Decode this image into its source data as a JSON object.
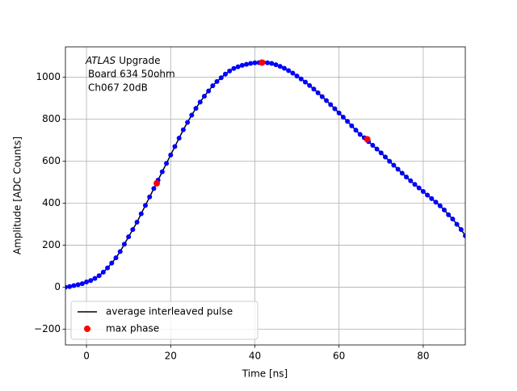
{
  "chart_data": {
    "type": "line",
    "annotation": {
      "italic": "ATLAS",
      "lines": [
        "Upgrade",
        "Board 634 50ohm",
        "Ch067 20dB"
      ]
    },
    "xlabel": "Time [ns]",
    "ylabel": "Amplitude [ADC Counts]",
    "xlim": [
      -5,
      90
    ],
    "xticks": [
      0,
      20,
      40,
      60,
      80
    ],
    "ylim": [
      -275,
      1145
    ],
    "yticks": [
      {
        "value": -200,
        "label": "−200"
      },
      0,
      200,
      400,
      600,
      800,
      1000
    ],
    "grid": true,
    "legend": "lower left",
    "series": [
      {
        "name": "average interleaved pulse",
        "color": "#000000",
        "marker_color": "#0000ff",
        "x": [
          -5,
          -4,
          -3,
          -2,
          -1,
          0,
          1,
          2,
          3,
          4,
          5,
          6,
          7,
          8,
          9,
          10,
          11,
          12,
          13,
          14,
          15,
          16,
          17,
          18,
          19,
          20,
          21,
          22,
          23,
          24,
          25,
          26,
          27,
          28,
          29,
          30,
          31,
          32,
          33,
          34,
          35,
          36,
          37,
          38,
          39,
          40,
          41,
          42,
          43,
          44,
          45,
          46,
          47,
          48,
          49,
          50,
          51,
          52,
          53,
          54,
          55,
          56,
          57,
          58,
          59,
          60,
          61,
          62,
          63,
          64,
          65,
          66,
          67,
          68,
          69,
          70,
          71,
          72,
          73,
          74,
          75,
          76,
          77,
          78,
          79,
          80,
          81,
          82,
          83,
          84,
          85,
          86,
          87,
          88,
          89,
          90
        ],
        "values": [
          0,
          3,
          8,
          12,
          17,
          25,
          32,
          42,
          55,
          72,
          92,
          115,
          140,
          170,
          205,
          240,
          275,
          310,
          350,
          390,
          430,
          470,
          510,
          550,
          590,
          630,
          670,
          710,
          750,
          785,
          820,
          852,
          882,
          910,
          935,
          960,
          980,
          998,
          1015,
          1030,
          1042,
          1050,
          1057,
          1062,
          1066,
          1069,
          1070,
          1071,
          1069,
          1066,
          1060,
          1052,
          1043,
          1032,
          1020,
          1006,
          992,
          977,
          961,
          944,
          926,
          908,
          889,
          870,
          850,
          830,
          810,
          790,
          769,
          748,
          728,
          712,
          694,
          676,
          658,
          640,
          620,
          600,
          581,
          562,
          543,
          525,
          507,
          490,
          473,
          456,
          439,
          422,
          405,
          388,
          368,
          345,
          325,
          300,
          275,
          245
        ]
      },
      {
        "name": "max phase",
        "color": "#ff0000",
        "x": [
          16.7,
          41.7,
          66.7
        ],
        "values": [
          495,
          1070,
          705
        ]
      }
    ]
  }
}
